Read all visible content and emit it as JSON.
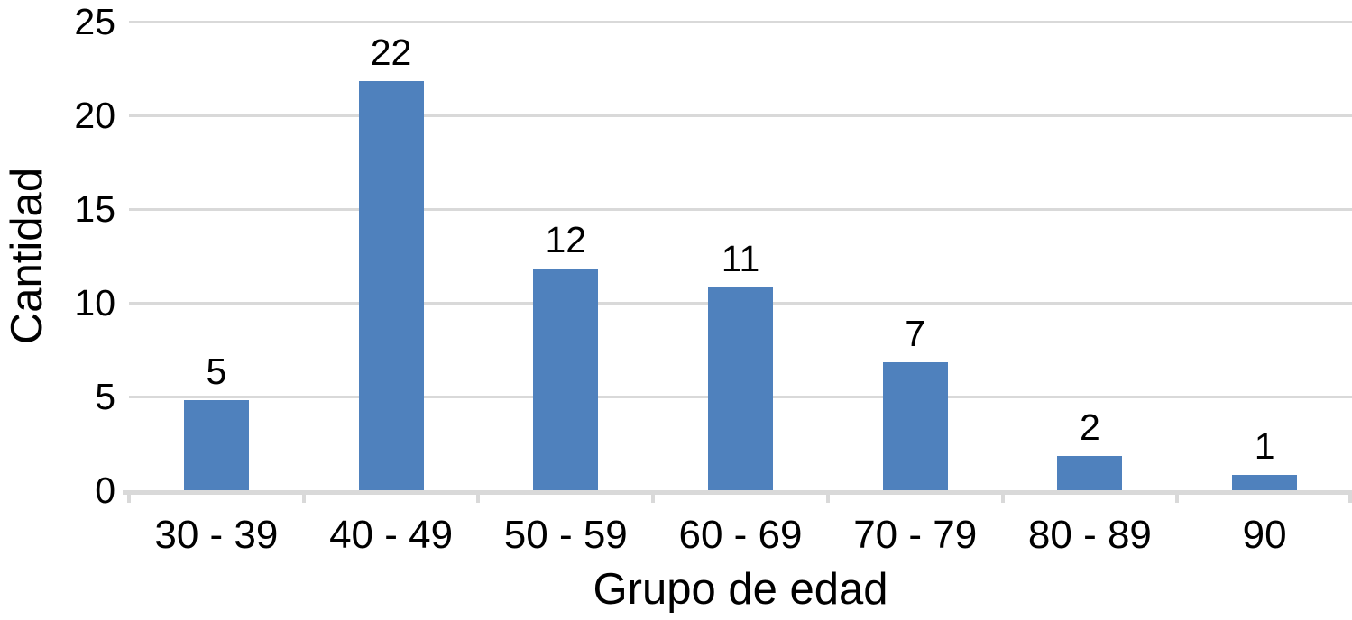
{
  "chart_data": {
    "type": "bar",
    "categories": [
      "30 - 39",
      "40 - 49",
      "50 - 59",
      "60 - 69",
      "70 - 79",
      "80 - 89",
      "90"
    ],
    "values": [
      5,
      22,
      12,
      11,
      7,
      2,
      1
    ],
    "xlabel": "Grupo de edad",
    "ylabel": "Cantidad",
    "yticks": [
      0,
      5,
      10,
      15,
      20,
      25
    ],
    "ylim": [
      0,
      25
    ],
    "grid": true,
    "legend_position": "none",
    "bar_color": "#4f81bd",
    "gridline_color": "#d9d9d9",
    "axis_color": "#d9d9d9",
    "text_color": "#000000",
    "background_color": "#ffffff"
  }
}
